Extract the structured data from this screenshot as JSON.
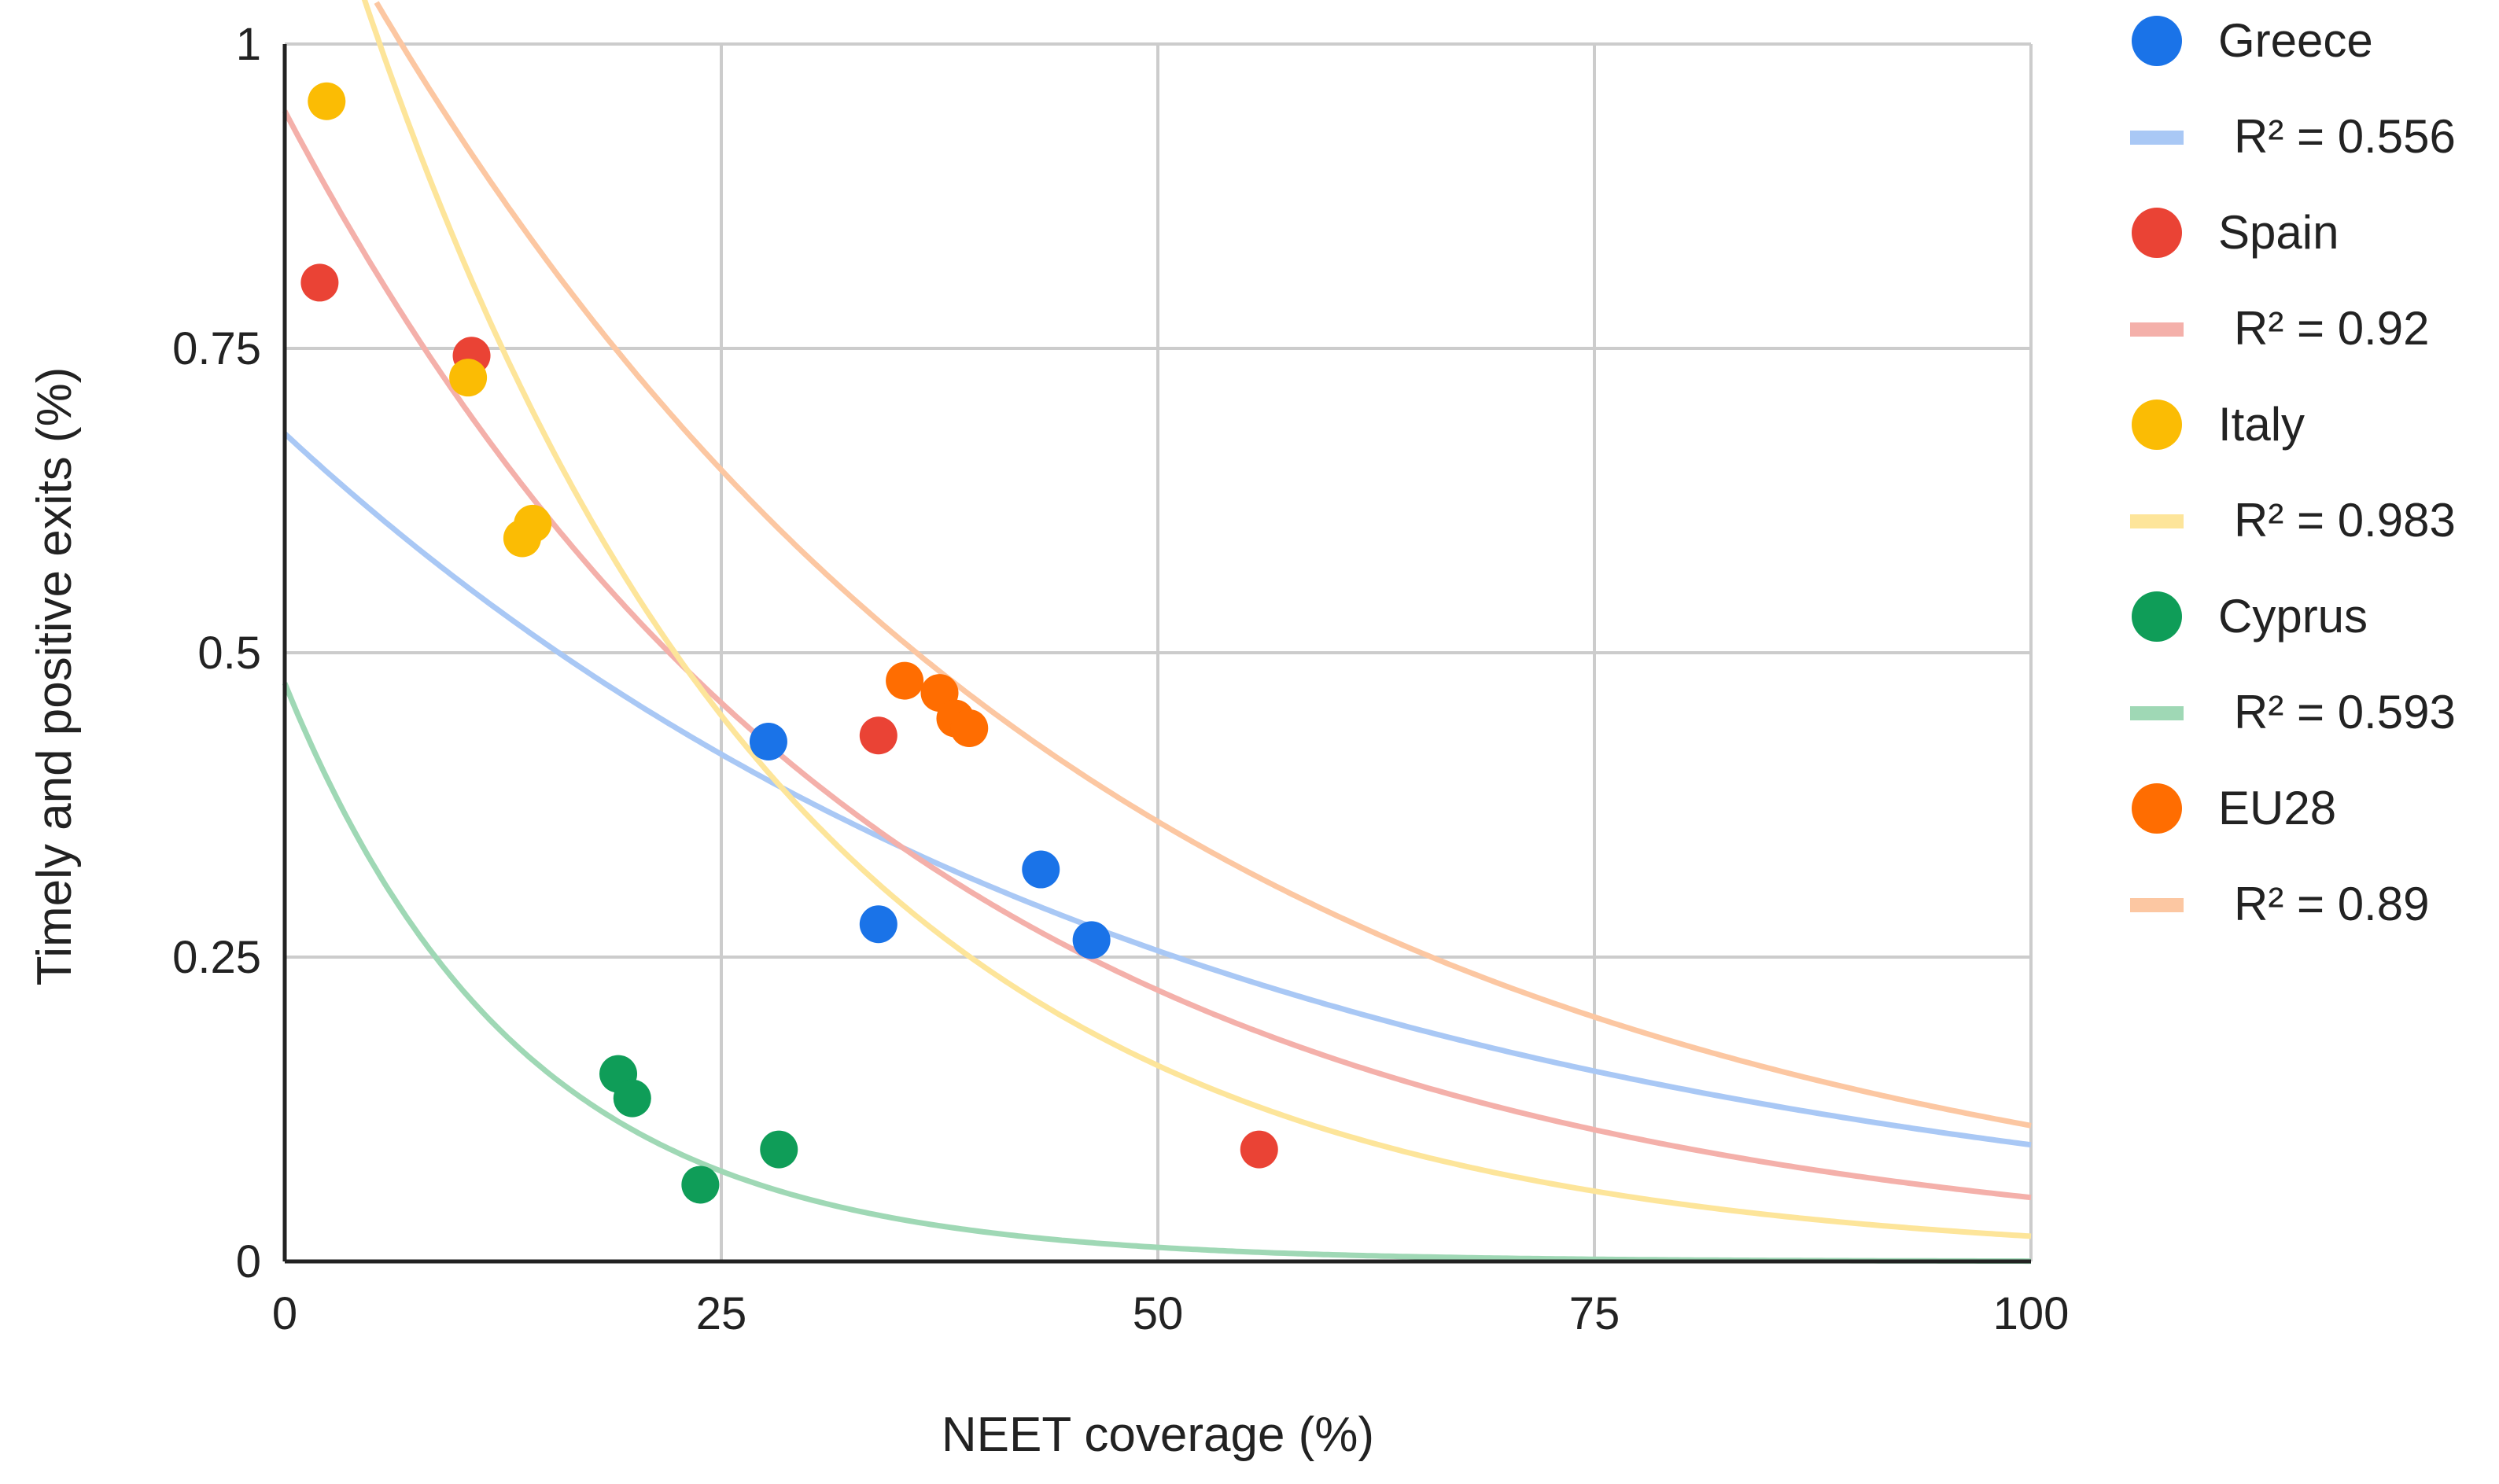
{
  "chart_data": {
    "type": "scatter",
    "xlabel": "NEET coverage (%)",
    "ylabel": "Timely and positive exits (%)",
    "xlim": [
      0,
      100
    ],
    "ylim": [
      0,
      1
    ],
    "x_ticks": [
      "0",
      "25",
      "50",
      "75",
      "100"
    ],
    "y_ticks": [
      "0",
      "0.25",
      "0.5",
      "0.75",
      "1"
    ],
    "grid": true,
    "legend_position": "right",
    "series": [
      {
        "name": "Greece",
        "color": "#1a73e8",
        "trend_color": "#a9c8f5",
        "r2_label": "R² = 0.556",
        "trend": {
          "type": "exponential",
          "a": 0.68,
          "b": 0.0196
        },
        "points": [
          [
            27.7,
            0.427
          ],
          [
            34.0,
            0.277
          ],
          [
            43.3,
            0.322
          ],
          [
            46.2,
            0.264
          ]
        ]
      },
      {
        "name": "Spain",
        "color": "#ea4335",
        "trend_color": "#f4b0aa",
        "r2_label": "R² = 0.92",
        "trend": {
          "type": "exponential",
          "a": 0.945,
          "b": 0.0289
        },
        "points": [
          [
            2.0,
            0.804
          ],
          [
            10.7,
            0.744
          ],
          [
            34.0,
            0.432
          ],
          [
            55.8,
            0.092
          ]
        ]
      },
      {
        "name": "Italy",
        "color": "#fbbc04",
        "trend_color": "#fde59a",
        "r2_label": "R² = 0.983",
        "trend": {
          "type": "exponential",
          "a": 1.25,
          "b": 0.041
        },
        "points": [
          [
            2.4,
            0.953
          ],
          [
            10.5,
            0.726
          ],
          [
            13.6,
            0.594
          ],
          [
            14.2,
            0.606
          ]
        ]
      },
      {
        "name": "Cyprus",
        "color": "#0f9d58",
        "trend_color": "#9fd8b5",
        "r2_label": "R² = 0.593",
        "trend": {
          "type": "exponential",
          "a": 0.475,
          "b": 0.0743
        },
        "points": [
          [
            19.1,
            0.154
          ],
          [
            19.9,
            0.134
          ],
          [
            23.8,
            0.063
          ],
          [
            28.3,
            0.092
          ]
        ]
      },
      {
        "name": "EU28",
        "color": "#ff6d01",
        "trend_color": "#fcc7a2",
        "r2_label": "R² = 0.89",
        "trend": {
          "type": "exponential",
          "a": 1.17,
          "b": 0.0235
        },
        "points": [
          [
            35.5,
            0.477
          ],
          [
            37.5,
            0.467
          ],
          [
            38.4,
            0.446
          ],
          [
            39.2,
            0.438
          ]
        ]
      }
    ]
  }
}
